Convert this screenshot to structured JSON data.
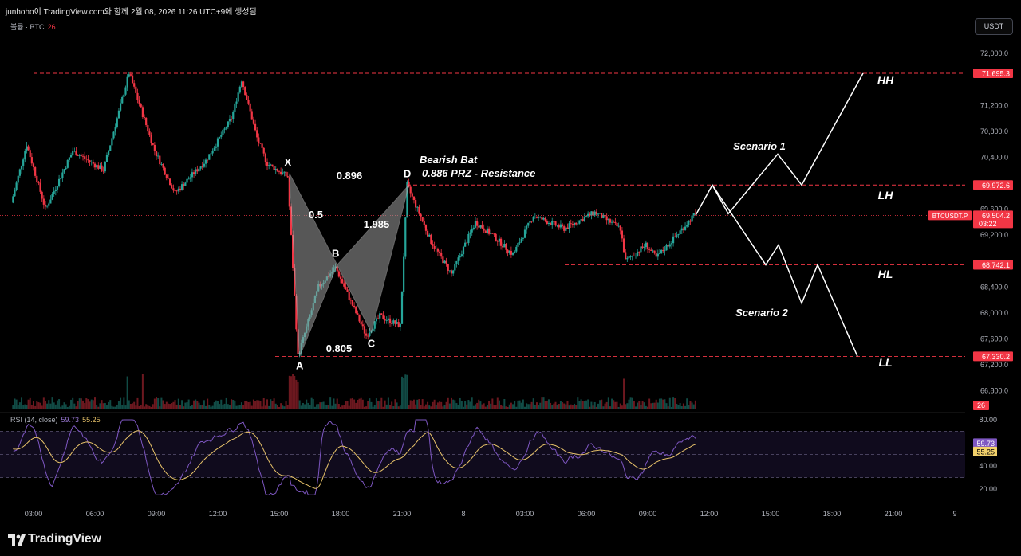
{
  "header": {
    "caption": "junhoho이 TradingView.com와 함께 2월 08, 2026 11:26 UTC+9에 생성됨"
  },
  "legend": {
    "label": "볼륨 · BTC",
    "value": "26"
  },
  "currency_button": "USDT",
  "rsi_legend": {
    "label": "RSI (14, close)",
    "rsi": "59.73",
    "ma": "55.25"
  },
  "footer": {
    "brand": "TradingView"
  },
  "colors": {
    "up": "#26a69a",
    "down": "#f23645",
    "rsi_line": "#7e57c2",
    "rsi_ma": "#e9c46a",
    "level_line": "#f23645",
    "scenario": "#ffffff"
  },
  "chart_data": [
    {
      "type": "candlestick",
      "symbol": "BTCUSDT.P",
      "x_ticks": [
        "03:00",
        "06:00",
        "09:00",
        "12:00",
        "15:00",
        "18:00",
        "21:00",
        "8",
        "03:00",
        "06:00",
        "09:00",
        "12:00",
        "15:00",
        "18:00",
        "21:00",
        "9"
      ],
      "y_ticks": [
        "72,000.0",
        "71,200.0",
        "70,800.0",
        "70,400.0",
        "69,600.0",
        "69,200.0",
        "68,400.0",
        "68,000.0",
        "67,600.0",
        "67,200.0",
        "66,800.0"
      ],
      "ylim": [
        66600,
        72150
      ],
      "last_price": {
        "value": 69504.2,
        "label": "69,504.2",
        "countdown": "03:22",
        "symbol_tag": "BTCUSDT.P"
      },
      "volume_tag": "26",
      "levels": [
        {
          "value": 71695.3,
          "label": "71,695.3",
          "tag": "HH"
        },
        {
          "value": 69972.6,
          "label": "69,972.6",
          "tag": "LH"
        },
        {
          "value": 68742.1,
          "label": "68,742.1",
          "tag": "HL"
        },
        {
          "value": 67330.2,
          "label": "67,330.2",
          "tag": "LL"
        }
      ],
      "ohlc_anchors": [
        {
          "t": "02:00",
          "price": 69700
        },
        {
          "t": "02:45",
          "price": 70600
        },
        {
          "t": "03:40",
          "price": 69600
        },
        {
          "t": "05:00",
          "price": 70500
        },
        {
          "t": "06:30",
          "price": 70200
        },
        {
          "t": "07:45",
          "price": 71700
        },
        {
          "t": "09:00",
          "price": 70500
        },
        {
          "t": "10:00",
          "price": 69850
        },
        {
          "t": "11:30",
          "price": 70350
        },
        {
          "t": "12:45",
          "price": 71000
        },
        {
          "t": "13:15",
          "price": 71600
        },
        {
          "t": "14:00",
          "price": 70700
        },
        {
          "t": "14:30",
          "price": 70300
        },
        {
          "t": "15:30",
          "price": 70100
        },
        {
          "t": "16:00",
          "price": 67330
        },
        {
          "t": "17:00",
          "price": 68400
        },
        {
          "t": "17:50",
          "price": 68700
        },
        {
          "t": "19:20",
          "price": 67650
        },
        {
          "t": "20:00",
          "price": 67950
        },
        {
          "t": "21:00",
          "price": 67800
        },
        {
          "t": "21:20",
          "price": 69970
        },
        {
          "t": "22:30",
          "price": 69100
        },
        {
          "t": "23:30",
          "price": 68600
        },
        {
          "t": "00:40",
          "price": 69400
        },
        {
          "t": "01:30",
          "price": 69200
        },
        {
          "t": "02:30",
          "price": 68900
        },
        {
          "t": "03:30",
          "price": 69500
        },
        {
          "t": "05:00",
          "price": 69300
        },
        {
          "t": "06:30",
          "price": 69550
        },
        {
          "t": "07:45",
          "price": 69300
        },
        {
          "t": "08:00",
          "price": 68800
        },
        {
          "t": "09:00",
          "price": 69050
        },
        {
          "t": "09:30",
          "price": 68850
        },
        {
          "t": "10:30",
          "price": 69200
        },
        {
          "t": "11:20",
          "price": 69504
        }
      ],
      "pattern": {
        "name": "Bearish Bat",
        "subtitle": "0.886 PRZ - Resistance",
        "points": [
          {
            "label": "X",
            "t": "15:30",
            "price": 70150
          },
          {
            "label": "A",
            "t": "16:00",
            "price": 67330
          },
          {
            "label": "B",
            "t": "17:50",
            "price": 68740
          },
          {
            "label": "C",
            "t": "19:30",
            "price": 67700
          },
          {
            "label": "D",
            "t": "21:20",
            "price": 69970
          }
        ],
        "ratios": {
          "XB": "0.5",
          "AC": "0.805",
          "BD": "1.985",
          "XD": "0.896"
        }
      },
      "scenarios": [
        {
          "name": "Scenario 1",
          "path": [
            69504,
            69972.6,
            69530,
            70450,
            69972.6,
            71695.3
          ]
        },
        {
          "name": "Scenario 2",
          "path": [
            69972.6,
            68742.1,
            69050,
            68150,
            68742.1,
            67330.2
          ]
        }
      ]
    },
    {
      "type": "line",
      "name": "RSI (14, close)",
      "y_ticks": [
        "80.00",
        "40.00",
        "20.00"
      ],
      "ylim": [
        15,
        85
      ],
      "bands": [
        70,
        50,
        30
      ],
      "current": {
        "rsi": 59.73,
        "ma": 55.25
      },
      "shape": "oscillating 40–70, dip to ~17 near 16:00, spike to ~70 near 21:20"
    }
  ]
}
